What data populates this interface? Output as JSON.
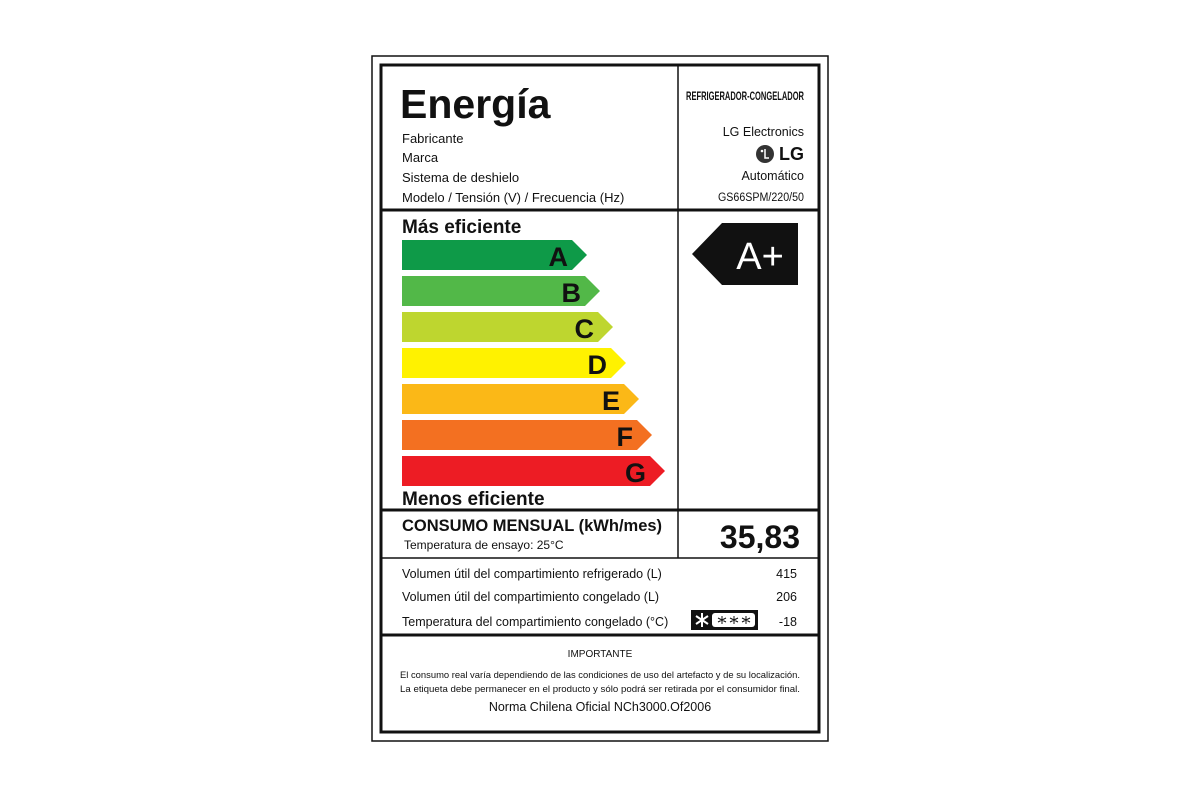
{
  "header": {
    "title": "Energía",
    "category": "REFRIGERADOR-CONGELADOR",
    "fields": [
      {
        "label": "Fabricante",
        "value": "LG Electronics"
      },
      {
        "label": "Marca",
        "value": "LG"
      },
      {
        "label": "Sistema de deshielo",
        "value": "Automático"
      },
      {
        "label": "Modelo / Tensión (V) / Frecuencia (Hz)",
        "value": "GS66SPM/220/50"
      }
    ]
  },
  "efficiency": {
    "top_label": "Más eficiente",
    "bottom_label": "Menos eficiente",
    "classes": [
      {
        "letter": "A",
        "color": "#0e9a48"
      },
      {
        "letter": "B",
        "color": "#52b848"
      },
      {
        "letter": "C",
        "color": "#bed62f"
      },
      {
        "letter": "D",
        "color": "#fff200"
      },
      {
        "letter": "E",
        "color": "#fbb817"
      },
      {
        "letter": "F",
        "color": "#f37021"
      },
      {
        "letter": "G",
        "color": "#ed1c24"
      }
    ],
    "rating": "A+"
  },
  "consumption": {
    "label": "CONSUMO MENSUAL (kWh/mes)",
    "test_temperature": "Temperatura de ensayo: 25°C",
    "value": "35,83"
  },
  "details": [
    {
      "label": "Volumen útil del compartimiento refrigerado (L)",
      "value": "415"
    },
    {
      "label": "Volumen útil del compartimiento congelado (L)",
      "value": "206"
    },
    {
      "label": "Temperatura del compartimiento congelado (°C)",
      "value": "-18"
    }
  ],
  "notice": {
    "title": "IMPORTANTE",
    "lines": [
      "El consumo real varía dependiendo de las condiciones de uso del artefacto y de su localización.",
      "La etiqueta debe permanecer en el producto y sólo podrá ser retirada por el consumidor final."
    ],
    "standard": "Norma Chilena Oficial NCh3000.Of2006"
  }
}
